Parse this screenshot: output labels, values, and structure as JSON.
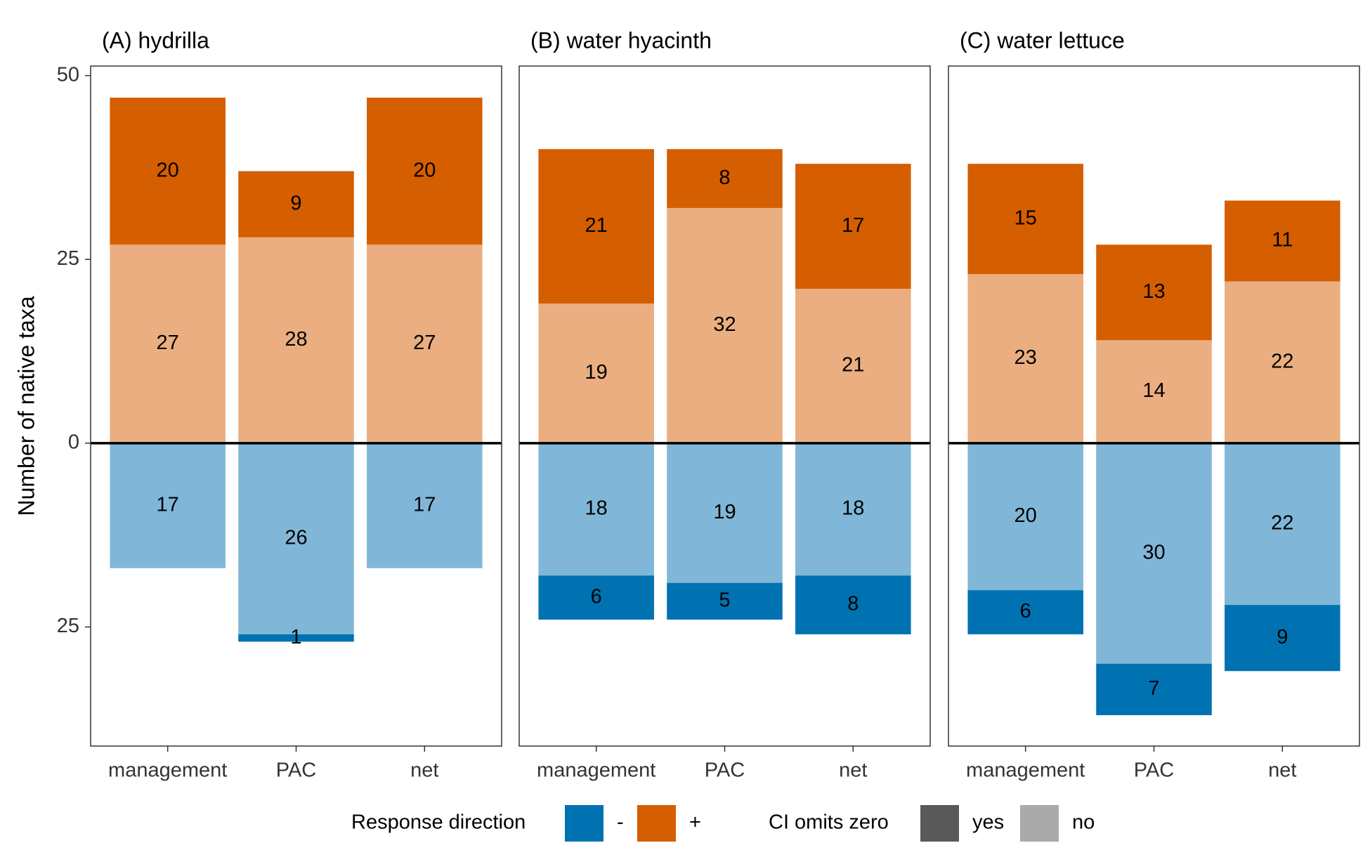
{
  "chart_data": [
    {
      "type": "bar",
      "title": "(A) hydrilla",
      "ylabel": "Number of native taxa",
      "categories": [
        "management",
        "PAC",
        "net"
      ],
      "series": [
        {
          "color": "#eaae80",
          "values": [
            27,
            28,
            27
          ]
        },
        {
          "color": "#d55e00",
          "values": [
            20,
            9,
            20
          ]
        },
        {
          "color": "#80b7d8",
          "values": [
            -17,
            -26,
            -17
          ],
          "value_labels": [
            "17",
            "26",
            "17"
          ]
        },
        {
          "color": "#0072b2",
          "values": [
            null,
            -1,
            null
          ],
          "value_labels": [
            null,
            "1",
            null
          ]
        }
      ],
      "ylim": [
        -41.2,
        51.3
      ],
      "yticks": [
        50,
        25,
        0,
        {
          "value": -25,
          "label": "25"
        }
      ]
    },
    {
      "type": "bar",
      "title": "(B) water hyacinth",
      "categories": [
        "management",
        "PAC",
        "net"
      ],
      "series": [
        {
          "color": "#eaae80",
          "values": [
            19,
            32,
            21
          ]
        },
        {
          "color": "#d55e00",
          "values": [
            21,
            8,
            17
          ]
        },
        {
          "color": "#80b7d8",
          "values": [
            -18,
            -19,
            -18
          ],
          "value_labels": [
            "18",
            "19",
            "18"
          ]
        },
        {
          "color": "#0072b2",
          "values": [
            -6,
            -5,
            -8
          ],
          "value_labels": [
            "6",
            "5",
            "8"
          ]
        }
      ],
      "ylim": [
        -41.2,
        51.3
      ]
    },
    {
      "type": "bar",
      "title": "(C) water lettuce",
      "categories": [
        "management",
        "PAC",
        "net"
      ],
      "series": [
        {
          "color": "#eaae80",
          "values": [
            23,
            14,
            22
          ]
        },
        {
          "color": "#d55e00",
          "values": [
            15,
            13,
            11
          ]
        },
        {
          "color": "#80b7d8",
          "values": [
            -20,
            -30,
            -22
          ],
          "value_labels": [
            "20",
            "30",
            "22"
          ]
        },
        {
          "color": "#0072b2",
          "values": [
            -6,
            -7,
            -9
          ],
          "value_labels": [
            "6",
            "7",
            "9"
          ]
        }
      ],
      "ylim": [
        -41.2,
        51.3
      ]
    }
  ],
  "legend": [
    {
      "title": "Response direction",
      "items": [
        {
          "label": "-",
          "color": "#0072b2"
        },
        {
          "label": "+",
          "color": "#d55e00"
        }
      ]
    },
    {
      "title": "CI omits zero",
      "items": [
        {
          "label": "yes",
          "color": "#595959"
        },
        {
          "label": "no",
          "color": "#aaaaaa"
        }
      ]
    }
  ]
}
